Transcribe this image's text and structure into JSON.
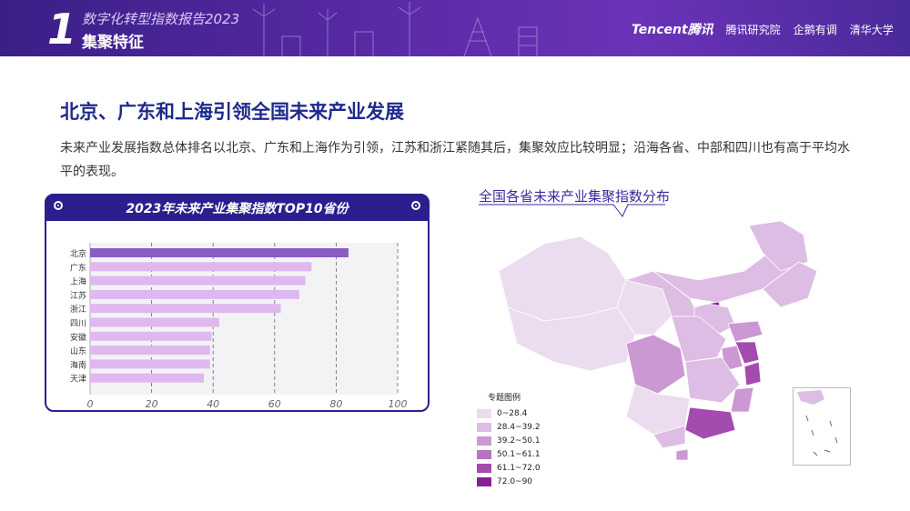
{
  "header": {
    "number": "1",
    "report_title": "数字化转型指数报告2023",
    "section": "集聚特征",
    "logos": [
      "Tencent腾讯",
      "腾讯研究院",
      "企鹅有调",
      "清华大学"
    ]
  },
  "main": {
    "title": "北京、广东和上海引领全国未来产业发展",
    "description": "未来产业发展指数总体排名以北京、广东和上海作为引领，江苏和浙江紧随其后，集聚效应比较明显；沿海各省、中部和四川也有高于平均水平的表现。"
  },
  "chart_panel": {
    "title": "2023年未来产业集聚指数TOP10省份"
  },
  "chart_data": {
    "type": "bar",
    "orientation": "horizontal",
    "title": "2023年未来产业集聚指数TOP10省份",
    "categories": [
      "北京",
      "广东",
      "上海",
      "江苏",
      "浙江",
      "四川",
      "安徽",
      "山东",
      "海南",
      "天津"
    ],
    "values": [
      84,
      72,
      70,
      68,
      62,
      42,
      39.5,
      39,
      39,
      37
    ],
    "xlim": [
      0,
      100
    ],
    "xticks": [
      "0",
      "20",
      "40",
      "60",
      "80",
      "100"
    ],
    "grid": true,
    "colors": {
      "top": "#8a5cc4",
      "others": "#e0b8f0"
    }
  },
  "map_panel": {
    "title": "全国各省未来产业集聚指数分布",
    "legend_title": "专题图例",
    "legend": [
      {
        "label": "0~28.4",
        "color": "#ecdcef"
      },
      {
        "label": "28.4~39.2",
        "color": "#ddbde3"
      },
      {
        "label": "39.2~50.1",
        "color": "#cc98d3"
      },
      {
        "label": "50.1~61.1",
        "color": "#b873c2"
      },
      {
        "label": "61.1~72.0",
        "color": "#a34bae"
      },
      {
        "label": "72.0~90",
        "color": "#8a1e96"
      }
    ]
  }
}
